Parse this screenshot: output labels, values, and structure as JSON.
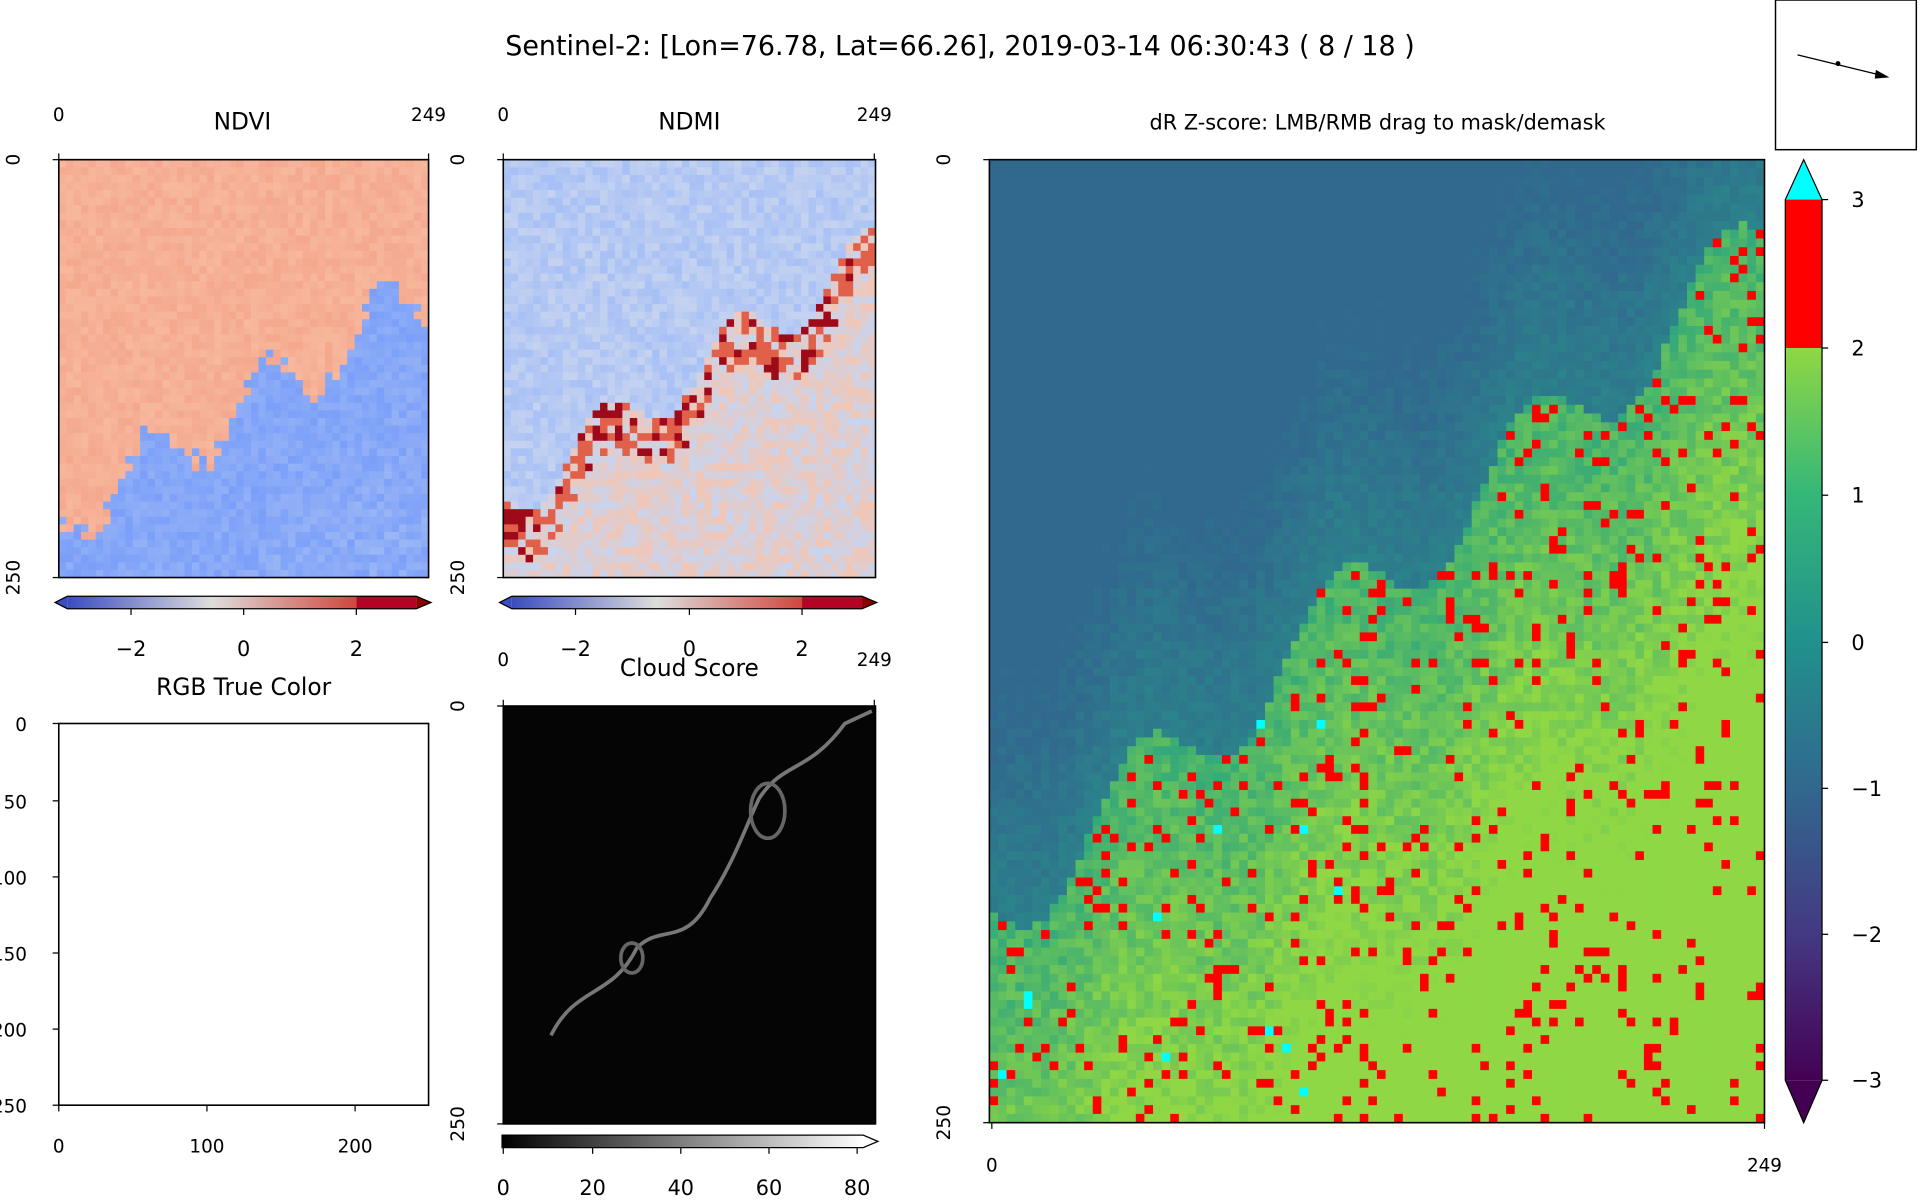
{
  "title": "Sentinel-2: [Lon=76.78, Lat=66.26], 2019-03-14 06:30:43 ( 8 / 18 )",
  "panels": [
    {
      "title": "NDVI",
      "xticks": [
        "0",
        "249"
      ],
      "yticks": [
        "0",
        "250"
      ],
      "colorbar_ticks": [
        "−2",
        "0",
        "2"
      ]
    },
    {
      "title": "NDMI",
      "xticks": [
        "0",
        "249"
      ],
      "yticks": [
        "0",
        "250"
      ],
      "colorbar_ticks": [
        "−2",
        "0",
        "2"
      ]
    },
    {
      "title": "RGB True Color",
      "xticks": [
        "0",
        "100",
        "200"
      ],
      "yticks": [
        "0",
        "50",
        "100",
        "150",
        "200",
        "250"
      ]
    },
    {
      "title": "Cloud Score",
      "xticks": [
        "0",
        "249"
      ],
      "yticks": [
        "0",
        "250"
      ],
      "colorbar_ticks": [
        "0",
        "20",
        "40",
        "60",
        "80"
      ]
    },
    {
      "title": "dR Z-score: LMB/RMB drag to mask/demask",
      "xticks": [
        "0",
        "249"
      ],
      "yticks": [
        "0",
        "250"
      ],
      "colorbar_ticks": [
        "3",
        "2",
        "1",
        "0",
        "−1",
        "−2",
        "−3"
      ]
    }
  ]
}
